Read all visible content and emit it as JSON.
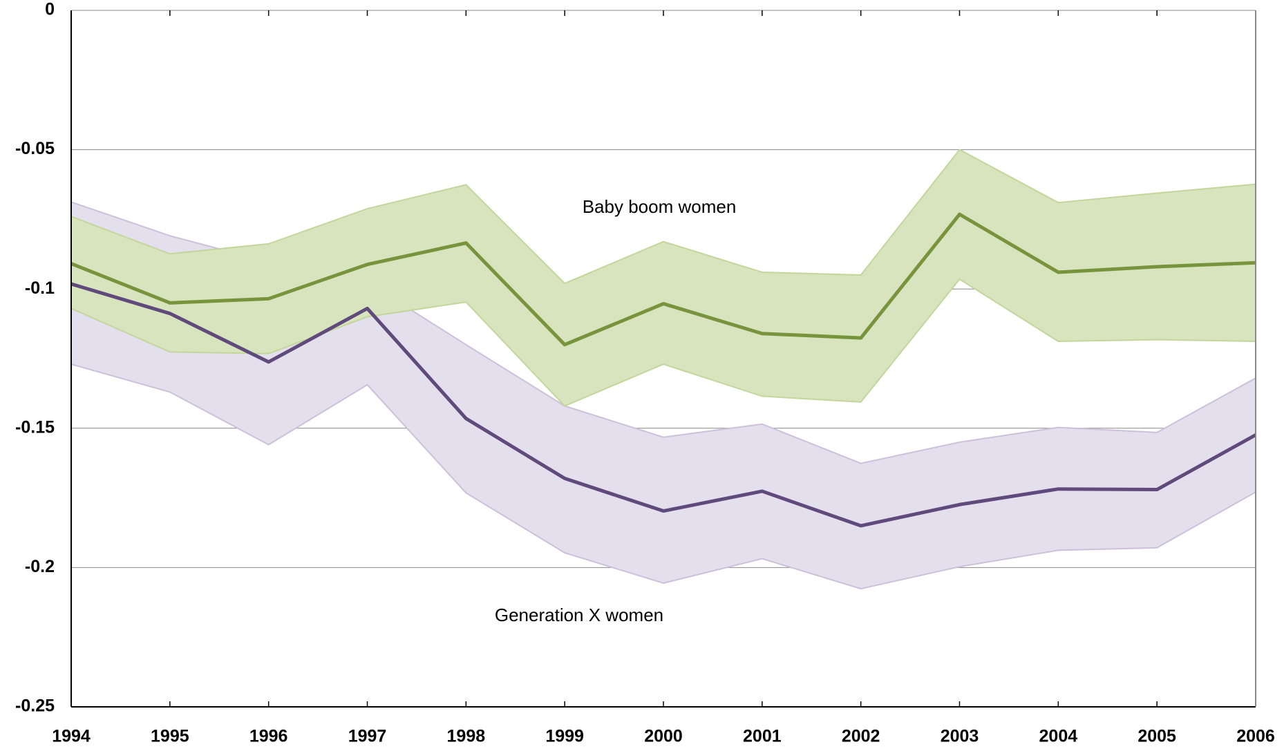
{
  "chart_data": {
    "type": "line",
    "x": [
      1994,
      1995,
      1996,
      1997,
      1998,
      1999,
      2000,
      2001,
      2002,
      2003,
      2004,
      2005,
      2006
    ],
    "xlim": [
      1994,
      2006
    ],
    "xticks": [
      1994,
      1995,
      1996,
      1997,
      1998,
      1999,
      2000,
      2001,
      2002,
      2003,
      2004,
      2005,
      2006
    ],
    "ylim": [
      -0.25,
      0
    ],
    "yticks": [
      0,
      -0.05,
      -0.1,
      -0.15,
      -0.2,
      -0.25
    ],
    "grid": true,
    "series": [
      {
        "name": "Generation X women",
        "color": "#604a7b",
        "band_color": "#e4dfec",
        "band_edge": "#ccc0da",
        "values": [
          -0.0982,
          -0.1088,
          -0.1262,
          -0.107,
          -0.1465,
          -0.168,
          -0.1797,
          -0.1726,
          -0.185,
          -0.1774,
          -0.1718,
          -0.172,
          -0.1524
        ],
        "upper": [
          -0.0688,
          -0.0809,
          -0.0903,
          -0.0976,
          -0.12,
          -0.142,
          -0.1532,
          -0.1485,
          -0.1626,
          -0.155,
          -0.1497,
          -0.1515,
          -0.132
        ],
        "lower": [
          -0.127,
          -0.137,
          -0.1559,
          -0.1344,
          -0.1732,
          -0.1947,
          -0.2056,
          -0.1968,
          -0.2076,
          -0.1997,
          -0.1938,
          -0.1929,
          -0.1729
        ]
      },
      {
        "name": "Baby boom women",
        "color": "#77933c",
        "band_color": "#d7e4bd",
        "band_edge": "#c3d69b",
        "values": [
          -0.0909,
          -0.105,
          -0.1035,
          -0.0912,
          -0.0835,
          -0.12,
          -0.1053,
          -0.116,
          -0.1176,
          -0.0732,
          -0.094,
          -0.092,
          -0.0906
        ],
        "upper": [
          -0.074,
          -0.0874,
          -0.0838,
          -0.0712,
          -0.0626,
          -0.098,
          -0.083,
          -0.094,
          -0.095,
          -0.05,
          -0.069,
          -0.0656,
          -0.0624
        ],
        "lower": [
          -0.107,
          -0.1226,
          -0.1232,
          -0.11,
          -0.1047,
          -0.142,
          -0.127,
          -0.1385,
          -0.1406,
          -0.0965,
          -0.1188,
          -0.1182,
          -0.1188
        ]
      }
    ]
  }
}
